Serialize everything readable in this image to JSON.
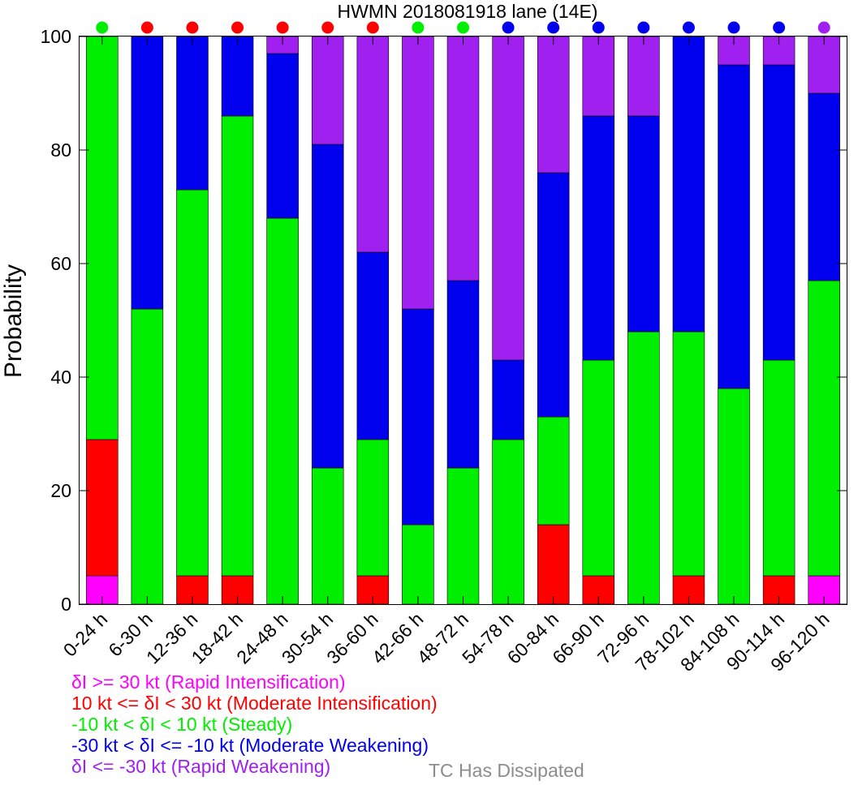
{
  "chart_data": {
    "type": "bar",
    "stacked": true,
    "title": "HWMN 2018081918 lane (14E)",
    "xlabel": "",
    "ylabel": "Probability",
    "ylim": [
      0,
      100
    ],
    "yticks": [
      "0",
      "20",
      "40",
      "60",
      "80",
      "100"
    ],
    "grid": false,
    "categories": [
      "0-24 h",
      "6-30 h",
      "12-36 h",
      "18-42 h",
      "24-48 h",
      "30-54 h",
      "36-60 h",
      "42-66 h",
      "48-72 h",
      "54-78 h",
      "60-84 h",
      "66-90 h",
      "72-96 h",
      "78-102 h",
      "84-108 h",
      "90-114 h",
      "96-120 h"
    ],
    "series": [
      {
        "key": "ri",
        "color": "#ff00ff",
        "values": [
          5,
          0,
          0,
          0,
          0,
          0,
          0,
          0,
          0,
          0,
          0,
          0,
          0,
          0,
          0,
          0,
          5
        ]
      },
      {
        "key": "mi",
        "color": "#ff0000",
        "values": [
          24,
          0,
          5,
          5,
          0,
          0,
          5,
          0,
          0,
          0,
          14,
          5,
          0,
          5,
          0,
          5,
          0
        ]
      },
      {
        "key": "steady",
        "color": "#00ee00",
        "values": [
          71,
          52,
          68,
          81,
          68,
          24,
          24,
          14,
          24,
          29,
          19,
          38,
          48,
          43,
          38,
          38,
          52
        ]
      },
      {
        "key": "mw",
        "color": "#0000ee",
        "values": [
          0,
          48,
          27,
          14,
          29,
          57,
          33,
          38,
          33,
          14,
          43,
          43,
          38,
          52,
          57,
          52,
          33
        ]
      },
      {
        "key": "rw",
        "color": "#a020f0",
        "values": [
          0,
          0,
          0,
          0,
          3,
          19,
          38,
          48,
          43,
          57,
          24,
          14,
          14,
          0,
          5,
          5,
          10
        ]
      }
    ],
    "top_markers": [
      "#00ee00",
      "#ff0000",
      "#ff0000",
      "#ff0000",
      "#ff0000",
      "#ff0000",
      "#ff0000",
      "#00ee00",
      "#00ee00",
      "#0000ee",
      "#0000ee",
      "#0000ee",
      "#0000ee",
      "#0000ee",
      "#0000ee",
      "#0000ee",
      "#a020f0"
    ],
    "legend_placement": "bottom-left",
    "legend": [
      {
        "label": "δI >= 30 kt (Rapid Intensification)",
        "color": "#ff00ff"
      },
      {
        "label": "10 kt <= δI < 30 kt (Moderate Intensification)",
        "color": "#ff0000"
      },
      {
        "label": "-10 kt < δI < 10 kt (Steady)",
        "color": "#00ee00"
      },
      {
        "label": "-30 kt < δI <= -10 kt (Moderate Weakening)",
        "color": "#0000ee"
      },
      {
        "label": "δI <= -30 kt (Rapid Weakening)",
        "color": "#a020f0"
      }
    ],
    "note": {
      "label": "TC Has Dissipated",
      "color": "#8c8c8c"
    }
  }
}
